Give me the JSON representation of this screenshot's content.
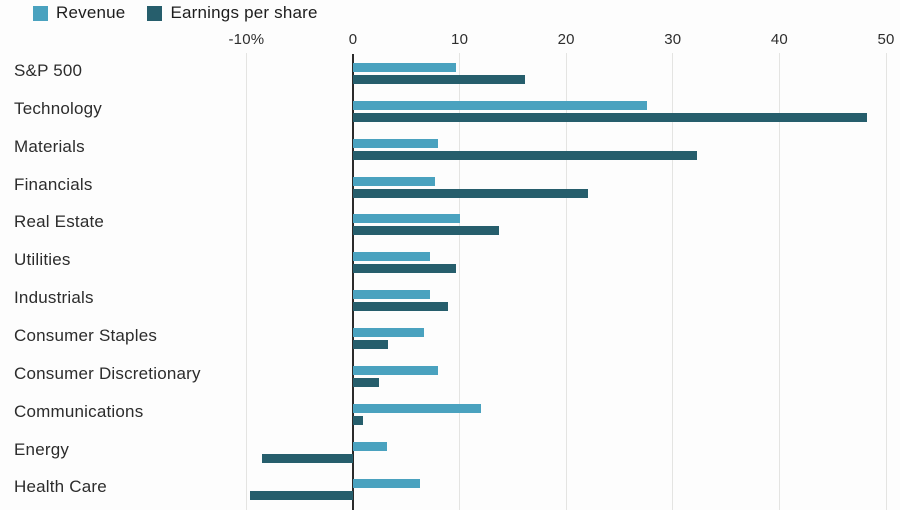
{
  "legend": {
    "items": [
      {
        "label": "Revenue",
        "color": "#4aa2bf"
      },
      {
        "label": "Earnings per share",
        "color": "#265e6c"
      }
    ]
  },
  "colors": {
    "revenue": "#4aa2bf",
    "eps": "#265e6c",
    "zero_axis": "#2b2b2b",
    "gridline": "#e4e4e2",
    "text": "#2c2c2c"
  },
  "chart_data": {
    "type": "bar",
    "orientation": "horizontal",
    "title": "",
    "xlabel": "",
    "ylabel": "",
    "unit": "%",
    "xlim": [
      -10.8,
      51.5
    ],
    "grid": true,
    "legend_position": "top-left",
    "ticks": [
      {
        "value": -10,
        "label": "-10%"
      },
      {
        "value": 0,
        "label": "0"
      },
      {
        "value": 10,
        "label": "10"
      },
      {
        "value": 20,
        "label": "20"
      },
      {
        "value": 30,
        "label": "30"
      },
      {
        "value": 40,
        "label": "40"
      },
      {
        "value": 50,
        "label": "50"
      }
    ],
    "categories": [
      "S&P 500",
      "Technology",
      "Materials",
      "Financials",
      "Real Estate",
      "Utilities",
      "Industrials",
      "Consumer Staples",
      "Consumer Discretionary",
      "Communications",
      "Energy",
      "Health Care"
    ],
    "series": [
      {
        "name": "Revenue",
        "color": "#4aa2bf",
        "values": [
          9.7,
          27.6,
          8.0,
          7.7,
          10.0,
          7.2,
          7.2,
          6.7,
          8.0,
          12.0,
          3.2,
          6.3
        ]
      },
      {
        "name": "Earnings per share",
        "color": "#265e6c",
        "values": [
          16.1,
          48.2,
          32.3,
          22.0,
          13.7,
          9.7,
          8.9,
          3.3,
          2.4,
          0.9,
          -8.5,
          -9.7
        ]
      }
    ]
  }
}
